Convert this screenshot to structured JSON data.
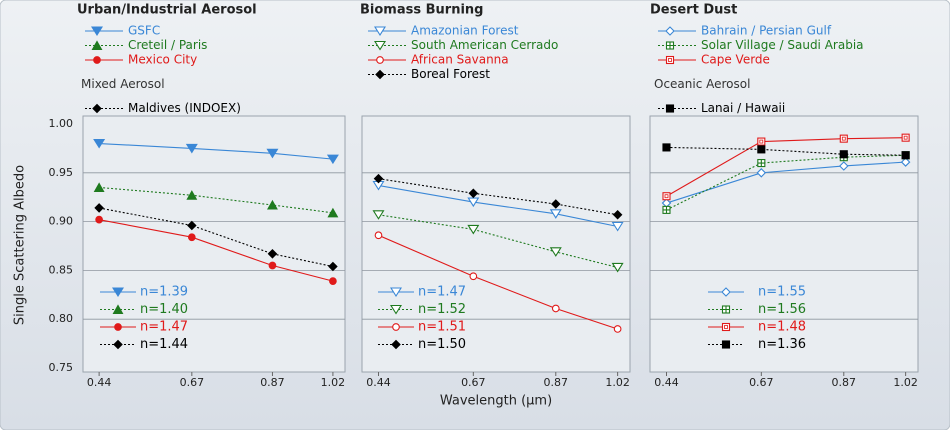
{
  "chart_data": [
    {
      "type": "line",
      "ylabel": "Single Scattering Albedo",
      "ylim": [
        0.75,
        1.0
      ],
      "yticks": [
        0.75,
        {
          "value": 0.8,
          "label": "0.80"
        },
        0.85,
        {
          "value": 0.9,
          "label": "0.90"
        },
        0.95,
        {
          "value": 1.0,
          "label": "1.00"
        }
      ],
      "grid": true,
      "x": [
        0.44,
        0.67,
        0.87,
        1.02
      ],
      "xlim": [
        0.4,
        1.05
      ],
      "xticks": [
        0.44,
        0.67,
        0.87,
        1.02
      ],
      "groups": [
        {
          "title": "Urban/Industrial Aerosol",
          "series": [
            {
              "name": "GSFC",
              "n_label": "n=1.39",
              "color": "#3a87d6",
              "marker": "triangle-down",
              "dash": "solid",
              "values": [
                0.98,
                0.975,
                0.97,
                0.964
              ]
            },
            {
              "name": "Creteil / Paris",
              "n_label": "n=1.40",
              "color": "#1f7a1f",
              "marker": "triangle-up",
              "dash": "dotted",
              "values": [
                0.935,
                0.927,
                0.917,
                0.909
              ]
            },
            {
              "name": "Mexico City",
              "n_label": "n=1.47",
              "color": "#e01a1a",
              "marker": "circle",
              "dash": "solid",
              "values": [
                0.902,
                0.884,
                0.855,
                0.839
              ]
            }
          ]
        },
        {
          "title": "Mixed Aerosol",
          "series": [
            {
              "name": "Maldives (INDOEX)",
              "n_label": "n=1.44",
              "color": "#000000",
              "marker": "diamond",
              "dash": "dotted",
              "values": [
                0.914,
                0.896,
                0.867,
                0.854
              ]
            }
          ]
        }
      ]
    },
    {
      "type": "line",
      "xlabel": "Wavelength (μm)",
      "x": [
        0.44,
        0.67,
        0.87,
        1.02
      ],
      "xlim": [
        0.4,
        1.05
      ],
      "xticks": [
        0.44,
        0.67,
        0.87,
        1.02
      ],
      "groups": [
        {
          "title": "Biomass Burning",
          "series": [
            {
              "name": "Amazonian Forest",
              "n_label": "n=1.47",
              "color": "#3a87d6",
              "marker": "triangle-down-open",
              "dash": "solid",
              "values": [
                0.937,
                0.92,
                0.908,
                0.895
              ]
            },
            {
              "name": "South American Cerrado",
              "n_label": "n=1.52",
              "color": "#1f7a1f",
              "marker": "triangle-down-open",
              "dash": "dotted",
              "values": [
                0.907,
                0.892,
                0.869,
                0.853
              ]
            },
            {
              "name": "African Savanna",
              "n_label": "n=1.51",
              "color": "#e01a1a",
              "marker": "circle-open",
              "dash": "solid",
              "values": [
                0.886,
                0.844,
                0.811,
                0.79
              ]
            },
            {
              "name": "Boreal Forest",
              "n_label": "n=1.50",
              "color": "#000000",
              "marker": "diamond",
              "dash": "dotted",
              "values": [
                0.944,
                0.929,
                0.918,
                0.907
              ]
            }
          ]
        }
      ]
    },
    {
      "type": "line",
      "x": [
        0.44,
        0.67,
        0.87,
        1.02
      ],
      "xlim": [
        0.4,
        1.05
      ],
      "xticks": [
        0.44,
        0.67,
        0.87,
        1.02
      ],
      "groups": [
        {
          "title": "Desert Dust",
          "series": [
            {
              "name": "Bahrain / Persian Gulf",
              "n_label": "n=1.55",
              "color": "#3a87d6",
              "marker": "diamond-open",
              "dash": "solid",
              "values": [
                0.919,
                0.95,
                0.957,
                0.961
              ]
            },
            {
              "name": "Solar Village / Saudi Arabia",
              "n_label": "n=1.56",
              "color": "#1f7a1f",
              "marker": "square-plus",
              "dash": "dotted",
              "values": [
                0.912,
                0.96,
                0.966,
                0.968
              ]
            },
            {
              "name": "Cape Verde",
              "n_label": "n=1.48",
              "color": "#e01a1a",
              "marker": "square-open",
              "dash": "solid",
              "values": [
                0.926,
                0.982,
                0.985,
                0.986
              ]
            }
          ]
        },
        {
          "title": "Oceanic Aerosol",
          "series": [
            {
              "name": "Lanai / Hawaii",
              "n_label": "n=1.36",
              "color": "#000000",
              "marker": "square",
              "dash": "dotted",
              "values": [
                0.976,
                0.974,
                0.969,
                0.968
              ]
            }
          ]
        }
      ]
    }
  ]
}
